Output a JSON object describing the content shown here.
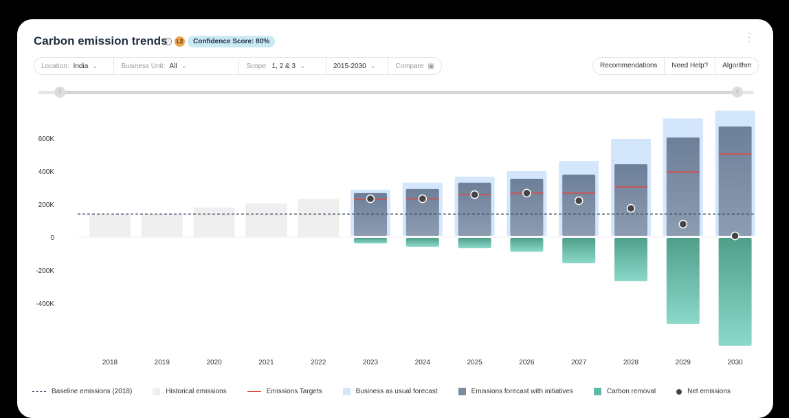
{
  "header": {
    "title": "Carbon emission trends",
    "info_icon": "info-icon",
    "level_badge": "L2",
    "confidence": "Confidence Score: 80%"
  },
  "filters": {
    "location_label": "Location:",
    "location_value": "India",
    "bu_label": "Business Unit:",
    "bu_value": "All",
    "scope_label": "Scope:",
    "scope_value": "1, 2 & 3",
    "range": "2015-2030",
    "compare_placeholder": "Compare"
  },
  "actions": [
    "Recommendations",
    "Need Help?",
    "Algorithm"
  ],
  "colors": {
    "historical": "#efefef",
    "bau": "#d3e6fb",
    "initiatives": "#7a8ba3",
    "target": "#e0483e",
    "removal": "#5fb9a4",
    "net": "#444444",
    "baseline": "#3e5066"
  },
  "chart_data": {
    "type": "bar",
    "title": "Carbon emission trends",
    "ylim": [
      -700000,
      800000
    ],
    "yticks": [
      600000,
      400000,
      200000,
      0,
      -200000,
      -400000
    ],
    "ytick_labels": [
      "600K",
      "400K",
      "200K",
      "0",
      "-200K",
      "-400K"
    ],
    "categories": [
      "2018",
      "2019",
      "2020",
      "2021",
      "2022",
      "2023",
      "2024",
      "2025",
      "2026",
      "2027",
      "2028",
      "2029",
      "2030"
    ],
    "baseline": 140000,
    "series": [
      {
        "name": "Historical emissions",
        "values": [
          137000,
          140000,
          180000,
          205000,
          233000,
          null,
          null,
          null,
          null,
          null,
          null,
          null,
          null
        ]
      },
      {
        "name": "Business as usual forecast",
        "values": [
          null,
          null,
          null,
          null,
          null,
          288000,
          330000,
          367000,
          400000,
          462000,
          596000,
          720000,
          767000
        ]
      },
      {
        "name": "Emissions forecast with initiatives",
        "values": [
          null,
          null,
          null,
          null,
          null,
          267000,
          292000,
          330000,
          354000,
          379000,
          442000,
          604000,
          671000
        ]
      },
      {
        "name": "Emissions Targets",
        "values": [
          null,
          null,
          null,
          null,
          null,
          229000,
          233000,
          258000,
          267000,
          267000,
          304000,
          396000,
          504000
        ]
      },
      {
        "name": "Carbon removal",
        "values": [
          null,
          null,
          null,
          null,
          null,
          -38000,
          -58000,
          -67000,
          -88000,
          -158000,
          -267000,
          -525000,
          -658000
        ]
      },
      {
        "name": "Net emissions",
        "values": [
          null,
          null,
          null,
          null,
          null,
          233000,
          233000,
          258000,
          267000,
          221000,
          175000,
          79000,
          8000
        ]
      }
    ],
    "legend": [
      "Baseline emissions (2018)",
      "Historical emissions",
      "Emissions Targets",
      "Business as usual forecast",
      "Emissions forecast with initiatives",
      "Carbon removal",
      "Net emissions"
    ],
    "legend_position": "bottom"
  }
}
